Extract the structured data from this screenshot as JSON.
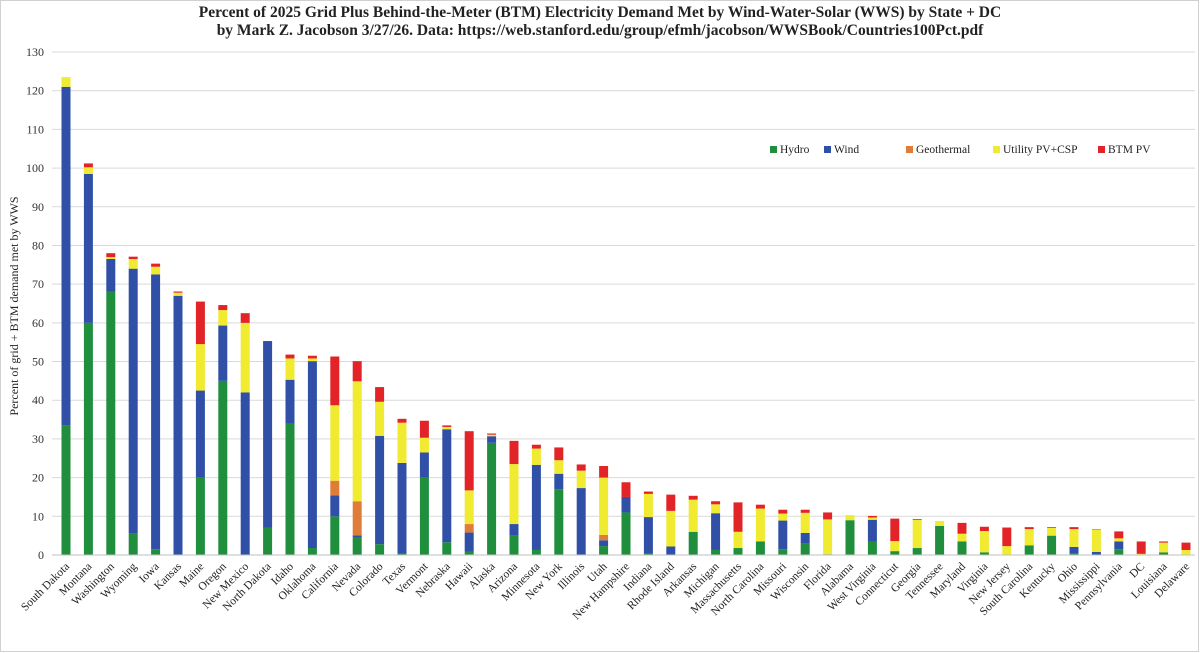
{
  "chart_data": {
    "type": "bar",
    "stacked": true,
    "title": "Percent of 2025 Grid Plus Behind-the-Meter (BTM) Electricity Demand Met by Wind-Water-Solar (WWS) by State + DC",
    "subtitle": "by Mark Z. Jacobson 3/27/26. Data: https://web.stanford.edu/group/efmh/jacobson/WWSBook/Countries100Pct.pdf",
    "xlabel": "",
    "ylabel": "Percent of grid + BTM demand met by WWS",
    "ylim": [
      0,
      130
    ],
    "yticks": [
      0,
      10,
      20,
      30,
      40,
      50,
      60,
      70,
      80,
      90,
      100,
      110,
      120,
      130
    ],
    "grid": true,
    "legend_position": "top-right",
    "categories": [
      "South Dakota",
      "Montana",
      "Washington",
      "Wyoming",
      "Iowa",
      "Kansas",
      "Maine",
      "Oregon",
      "New Mexico",
      "North Dakota",
      "Idaho",
      "Oklahoma",
      "California",
      "Nevada",
      "Colorado",
      "Texas",
      "Vermont",
      "Nebraska",
      "Hawaii",
      "Alaska",
      "Arizona",
      "Minnesota",
      "New York",
      "Illinois",
      "Utah",
      "New Hampshire",
      "Indiana",
      "Rhode Island",
      "Arkansas",
      "Michigan",
      "Massachusetts",
      "North Carolina",
      "Missouri",
      "Wisconsin",
      "Florida",
      "Alabama",
      "West Virginia",
      "Connecticut",
      "Georgia",
      "Tennessee",
      "Maryland",
      "Virginia",
      "New Jersey",
      "South Carolina",
      "Kentucky",
      "Ohio",
      "Mississippi",
      "Pennsylvania",
      "DC",
      "Louisiana",
      "Delaware"
    ],
    "series": [
      {
        "name": "Hydro",
        "color": "#1f8e3d",
        "values": [
          33.5,
          60,
          68,
          5.5,
          1.5,
          0,
          20,
          45,
          0,
          7,
          34,
          1.8,
          10,
          4.5,
          2.8,
          0.3,
          20,
          3.3,
          0.8,
          29,
          5,
          1.3,
          17,
          0,
          2.3,
          11,
          0.3,
          0,
          6,
          1.3,
          1.8,
          3.5,
          1.5,
          3,
          0.2,
          9,
          3.5,
          1,
          1.8,
          7.5,
          3.5,
          0.7,
          0,
          2.5,
          5,
          0.5,
          0,
          1.5,
          0,
          0.7,
          0
        ]
      },
      {
        "name": "Wind",
        "color": "#3050a8",
        "values": [
          87.5,
          38.5,
          8.5,
          68.5,
          71,
          67,
          22.5,
          14.3,
          42,
          48.3,
          11.3,
          48.3,
          5.4,
          0.6,
          28,
          23.5,
          6.5,
          29.2,
          5,
          1.7,
          3,
          22,
          4,
          17.3,
          1.5,
          4,
          9.5,
          2.2,
          0,
          9.5,
          0,
          0,
          7.4,
          2.7,
          0,
          0,
          5.6,
          0,
          0,
          0,
          0,
          0,
          0,
          0,
          0,
          1.6,
          0.8,
          2,
          0,
          0,
          0
        ]
      },
      {
        "name": "Geothermal",
        "color": "#e07c3a",
        "values": [
          0,
          0,
          0,
          0,
          0,
          0,
          0,
          0,
          0,
          0,
          0,
          0,
          3.8,
          8.8,
          0,
          0,
          0,
          0,
          2.2,
          0,
          0,
          0,
          0,
          0,
          1.4,
          0,
          0,
          0,
          0,
          0,
          0,
          0,
          0,
          0,
          0,
          0,
          0,
          0,
          0,
          0,
          0,
          0,
          0,
          0,
          0,
          0,
          0,
          0,
          0,
          0,
          0
        ]
      },
      {
        "name": "Utility PV+CSP",
        "color": "#f0ea30",
        "values": [
          2.5,
          1.7,
          0.5,
          2.5,
          2,
          0.8,
          12,
          4,
          18,
          0,
          5.5,
          0.7,
          19.5,
          31,
          8.8,
          10.4,
          3.8,
          0.6,
          8.7,
          0.4,
          15.5,
          4.2,
          3.5,
          4.5,
          14.8,
          0,
          6,
          9.2,
          8.3,
          2.3,
          4.2,
          8.5,
          1.8,
          5.2,
          9,
          1.3,
          0.6,
          2.6,
          7.3,
          1.3,
          2,
          5.5,
          2.3,
          4.2,
          2,
          4.6,
          5.8,
          0.8,
          0.3,
          2.5,
          1.3
        ]
      },
      {
        "name": "BTM PV",
        "color": "#e22428",
        "values": [
          0,
          1,
          1,
          0.6,
          0.8,
          0.3,
          11,
          1.3,
          2.5,
          0,
          1,
          0.7,
          12.6,
          5.2,
          3.8,
          1,
          4.4,
          0.4,
          15.3,
          0.3,
          6,
          1,
          3.3,
          1.6,
          3,
          3.8,
          0.6,
          4.2,
          1,
          0.8,
          7.6,
          1,
          1,
          0.8,
          1.8,
          0,
          0.4,
          5.8,
          0.2,
          0,
          2.8,
          1.1,
          4.8,
          0.5,
          0.2,
          0.5,
          0.1,
          1.8,
          3.2,
          0.3,
          1.9
        ]
      }
    ]
  }
}
